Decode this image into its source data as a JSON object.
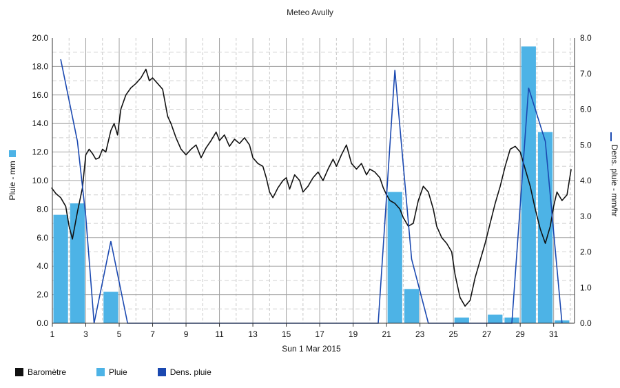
{
  "chart_data": {
    "type": "bar+line",
    "title": "Meteo  Avully",
    "xlabel": "Sun 1 Mar 2015",
    "x_ticks": [
      "1",
      "3",
      "5",
      "7",
      "9",
      "11",
      "13",
      "15",
      "17",
      "19",
      "21",
      "23",
      "25",
      "27",
      "29",
      "31"
    ],
    "y_left": {
      "label": "Pluie - mm",
      "range": [
        0,
        20
      ],
      "ticks": [
        "0.0",
        "2.0",
        "4.0",
        "6.0",
        "8.0",
        "10.0",
        "12.0",
        "14.0",
        "16.0",
        "18.0",
        "20.0"
      ]
    },
    "y_right": {
      "label": "Dens. pluie - mm/hr",
      "range": [
        0,
        8
      ],
      "ticks": [
        "0.0",
        "1.0",
        "2.0",
        "3.0",
        "4.0",
        "5.0",
        "6.0",
        "7.0",
        "8.0"
      ]
    },
    "grid": true,
    "legend": [
      {
        "name": "Baromètre",
        "color": "#111111"
      },
      {
        "name": "Pluie",
        "color": "#4db3e6"
      },
      {
        "name": "Dens. pluie",
        "color": "#1a48b0"
      }
    ],
    "pluie": [
      {
        "day": 1,
        "value": 7.6
      },
      {
        "day": 2,
        "value": 8.4
      },
      {
        "day": 4,
        "value": 2.2
      },
      {
        "day": 21,
        "value": 9.2
      },
      {
        "day": 22,
        "value": 2.4
      },
      {
        "day": 25,
        "value": 0.4
      },
      {
        "day": 27,
        "value": 0.6
      },
      {
        "day": 28,
        "value": 0.4
      },
      {
        "day": 29,
        "value": 19.4
      },
      {
        "day": 30,
        "value": 13.4
      },
      {
        "day": 31,
        "value": 0.2
      }
    ],
    "dens_pluie": [
      [
        1.5,
        7.4
      ],
      [
        2.5,
        5.1
      ],
      [
        3.0,
        3.0
      ],
      [
        3.5,
        0.0
      ],
      [
        4.5,
        2.3
      ],
      [
        5.5,
        0.0
      ],
      [
        20.5,
        0.0
      ],
      [
        21.5,
        7.1
      ],
      [
        22.5,
        1.8
      ],
      [
        23.5,
        0.0
      ],
      [
        28.5,
        0.0
      ],
      [
        29.5,
        6.6
      ],
      [
        30.5,
        5.1
      ],
      [
        31.5,
        0.0
      ]
    ],
    "barometre": [
      [
        0.95,
        9.5
      ],
      [
        1.2,
        9.1
      ],
      [
        1.5,
        8.8
      ],
      [
        1.8,
        8.2
      ],
      [
        2.0,
        6.8
      ],
      [
        2.2,
        5.9
      ],
      [
        2.5,
        7.8
      ],
      [
        2.8,
        9.5
      ],
      [
        3.0,
        11.8
      ],
      [
        3.2,
        12.2
      ],
      [
        3.4,
        11.9
      ],
      [
        3.6,
        11.5
      ],
      [
        3.8,
        11.6
      ],
      [
        4.0,
        12.2
      ],
      [
        4.2,
        12.0
      ],
      [
        4.5,
        13.5
      ],
      [
        4.7,
        14.0
      ],
      [
        4.9,
        13.2
      ],
      [
        5.1,
        15.0
      ],
      [
        5.4,
        16.0
      ],
      [
        5.7,
        16.5
      ],
      [
        6.0,
        16.8
      ],
      [
        6.3,
        17.2
      ],
      [
        6.6,
        17.8
      ],
      [
        6.8,
        17.0
      ],
      [
        7.0,
        17.2
      ],
      [
        7.3,
        16.8
      ],
      [
        7.6,
        16.4
      ],
      [
        7.9,
        14.5
      ],
      [
        8.1,
        14.0
      ],
      [
        8.4,
        13.0
      ],
      [
        8.7,
        12.2
      ],
      [
        9.0,
        11.8
      ],
      [
        9.3,
        12.2
      ],
      [
        9.6,
        12.5
      ],
      [
        9.9,
        11.6
      ],
      [
        10.2,
        12.3
      ],
      [
        10.5,
        12.8
      ],
      [
        10.8,
        13.4
      ],
      [
        11.0,
        12.8
      ],
      [
        11.3,
        13.2
      ],
      [
        11.6,
        12.4
      ],
      [
        11.9,
        12.9
      ],
      [
        12.2,
        12.6
      ],
      [
        12.5,
        13.0
      ],
      [
        12.8,
        12.5
      ],
      [
        13.0,
        11.6
      ],
      [
        13.3,
        11.2
      ],
      [
        13.6,
        11.0
      ],
      [
        13.8,
        10.2
      ],
      [
        14.0,
        9.2
      ],
      [
        14.2,
        8.8
      ],
      [
        14.5,
        9.5
      ],
      [
        14.8,
        10.0
      ],
      [
        15.0,
        10.2
      ],
      [
        15.2,
        9.4
      ],
      [
        15.5,
        10.4
      ],
      [
        15.8,
        10.0
      ],
      [
        16.0,
        9.2
      ],
      [
        16.3,
        9.6
      ],
      [
        16.6,
        10.2
      ],
      [
        16.9,
        10.6
      ],
      [
        17.2,
        10.0
      ],
      [
        17.5,
        10.8
      ],
      [
        17.8,
        11.5
      ],
      [
        18.0,
        11.0
      ],
      [
        18.3,
        11.8
      ],
      [
        18.6,
        12.5
      ],
      [
        18.9,
        11.2
      ],
      [
        19.2,
        10.8
      ],
      [
        19.5,
        11.2
      ],
      [
        19.8,
        10.4
      ],
      [
        20.0,
        10.8
      ],
      [
        20.3,
        10.6
      ],
      [
        20.6,
        10.2
      ],
      [
        20.8,
        9.5
      ],
      [
        21.0,
        9.0
      ],
      [
        21.2,
        8.6
      ],
      [
        21.5,
        8.4
      ],
      [
        21.8,
        8.0
      ],
      [
        22.0,
        7.4
      ],
      [
        22.3,
        6.8
      ],
      [
        22.6,
        7.0
      ],
      [
        22.9,
        8.6
      ],
      [
        23.2,
        9.6
      ],
      [
        23.5,
        9.2
      ],
      [
        23.8,
        8.0
      ],
      [
        24.0,
        6.8
      ],
      [
        24.3,
        6.0
      ],
      [
        24.6,
        5.6
      ],
      [
        24.9,
        5.0
      ],
      [
        25.1,
        3.4
      ],
      [
        25.4,
        1.8
      ],
      [
        25.7,
        1.2
      ],
      [
        26.0,
        1.6
      ],
      [
        26.3,
        3.2
      ],
      [
        26.6,
        4.4
      ],
      [
        26.9,
        5.6
      ],
      [
        27.2,
        7.0
      ],
      [
        27.5,
        8.4
      ],
      [
        27.8,
        9.6
      ],
      [
        28.1,
        11.0
      ],
      [
        28.4,
        12.2
      ],
      [
        28.7,
        12.4
      ],
      [
        29.0,
        12.0
      ],
      [
        29.3,
        10.8
      ],
      [
        29.6,
        9.6
      ],
      [
        29.9,
        8.0
      ],
      [
        30.2,
        6.6
      ],
      [
        30.5,
        5.6
      ],
      [
        30.8,
        6.8
      ],
      [
        31.0,
        8.2
      ],
      [
        31.2,
        9.2
      ],
      [
        31.5,
        8.6
      ],
      [
        31.8,
        9.0
      ],
      [
        32.05,
        10.8
      ]
    ]
  }
}
